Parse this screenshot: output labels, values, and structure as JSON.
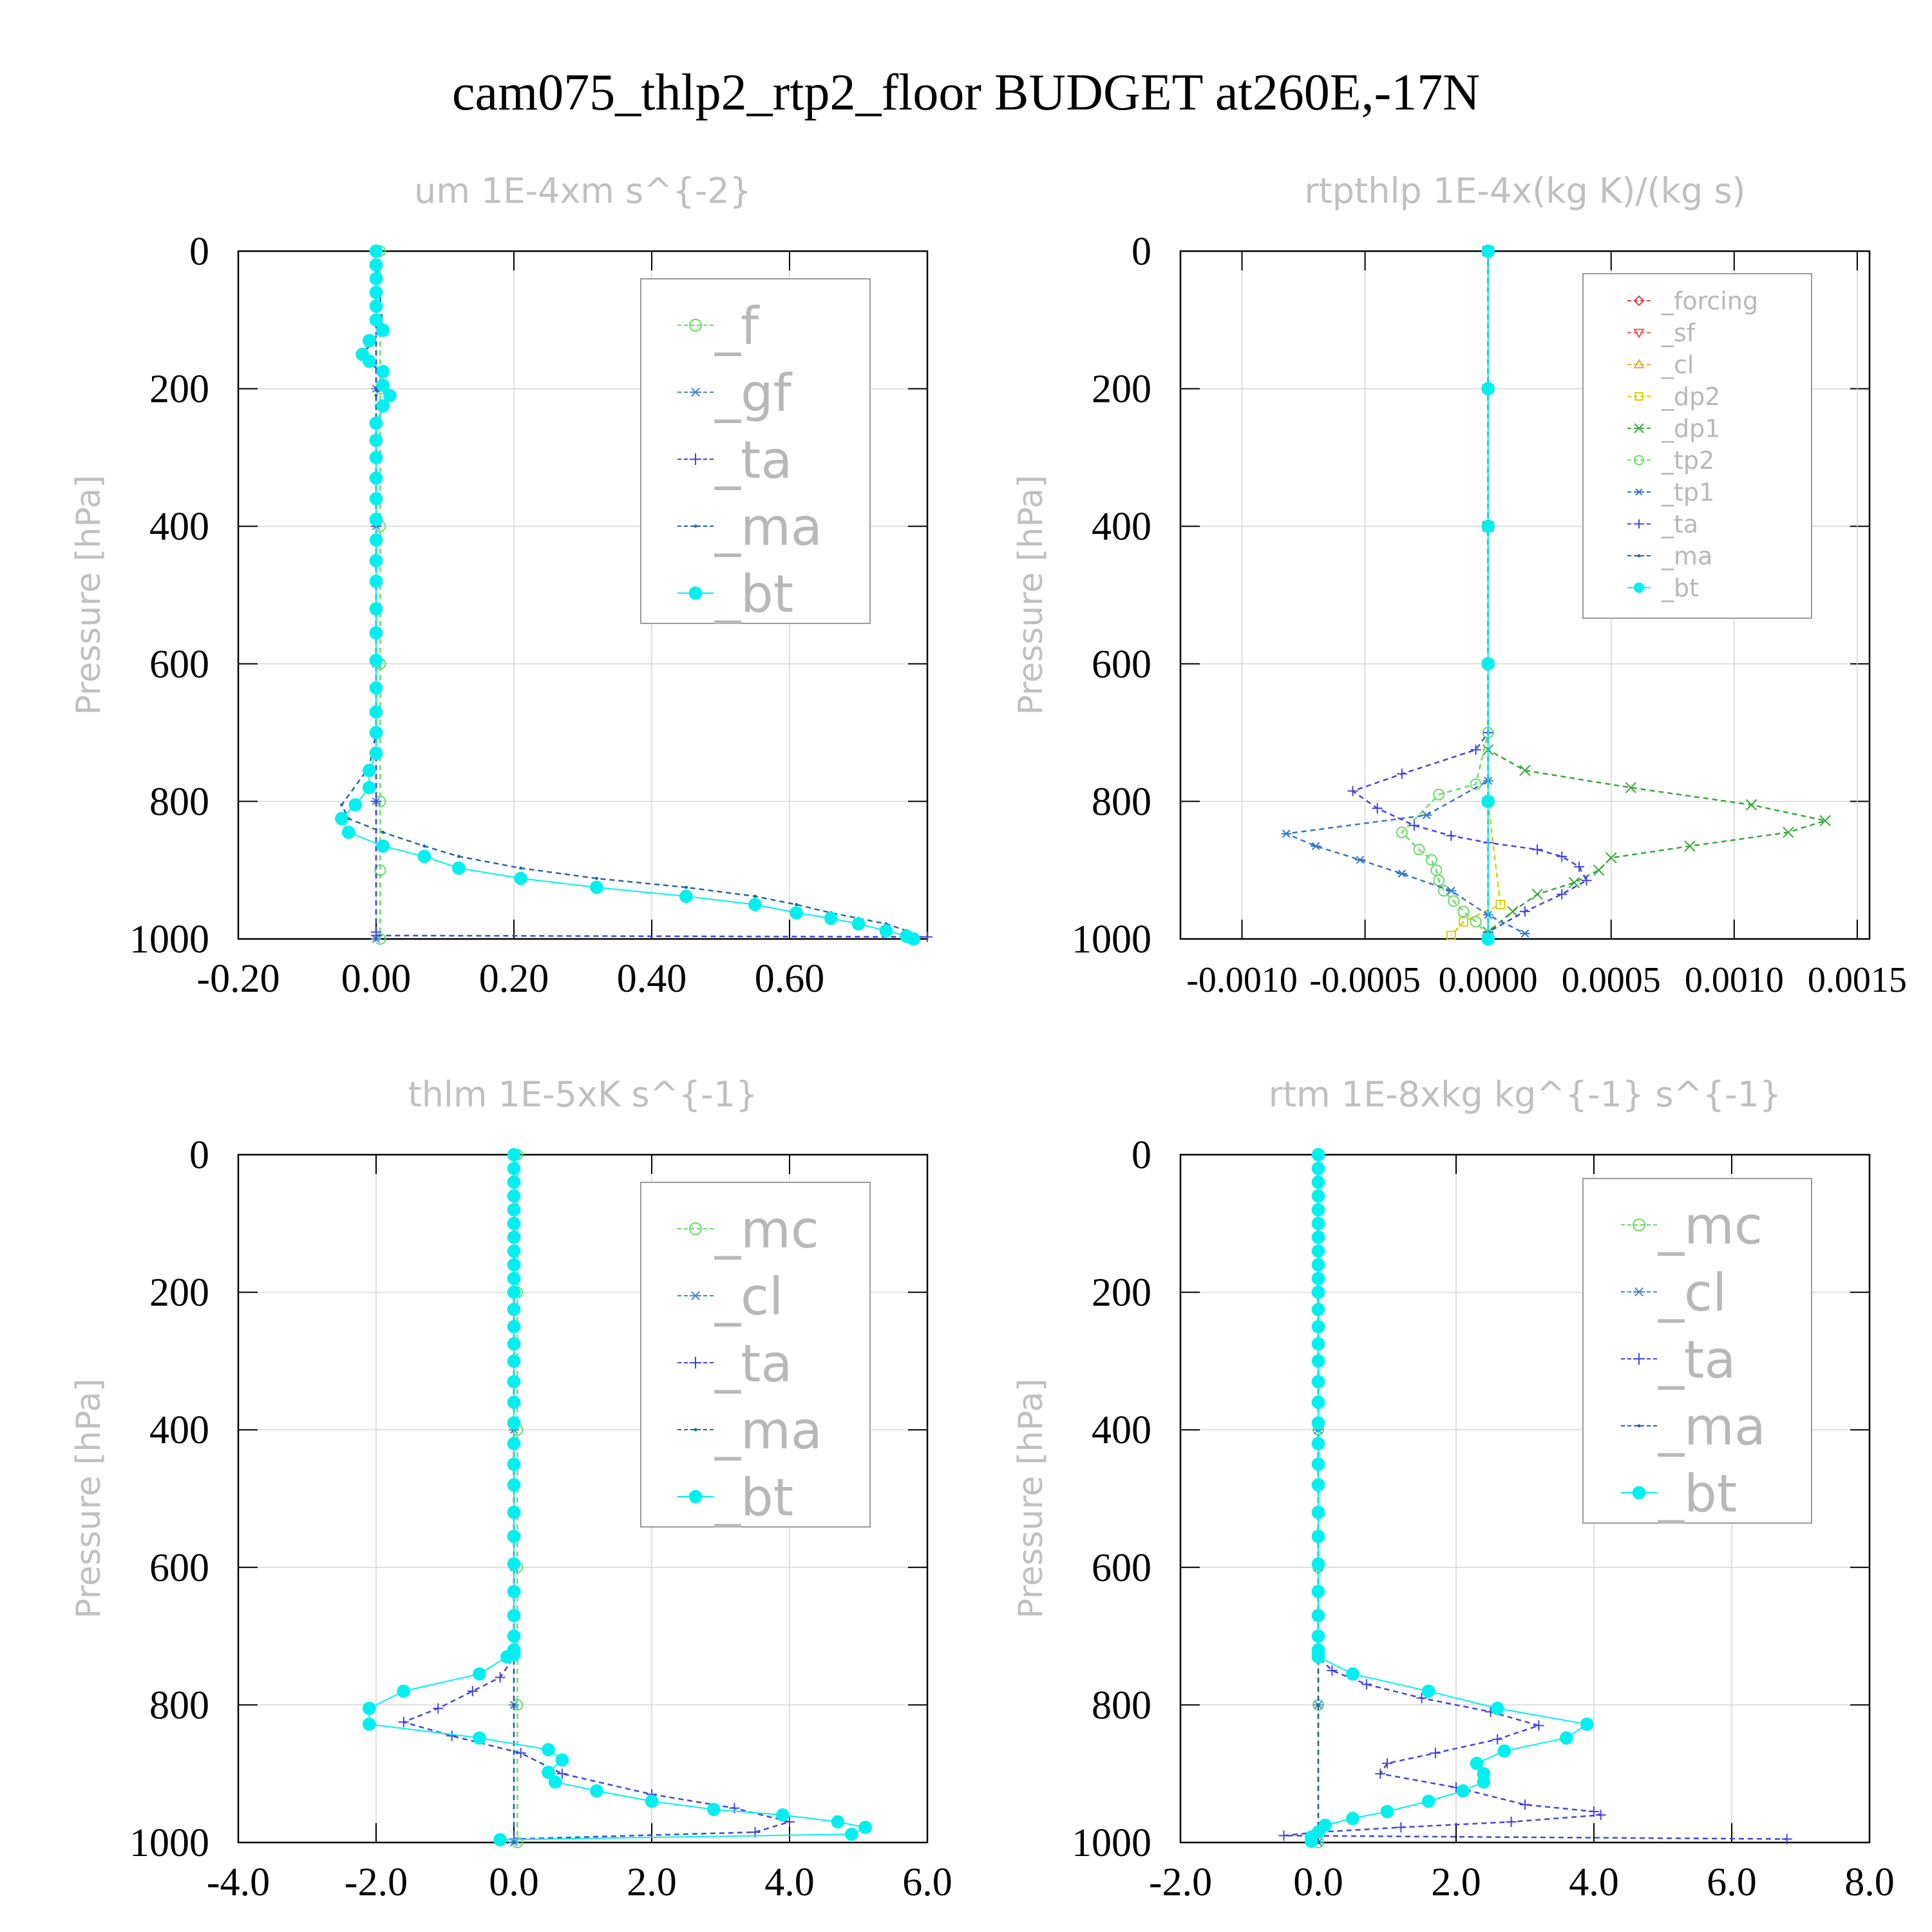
{
  "figure": {
    "title": "cam075_thlp2_rtp2_floor  BUDGET at260E,-17N"
  },
  "chart_data": [
    {
      "type": "line",
      "title": "um  1E-4xm s^{-2}",
      "ylabel": "Pressure [hPa]",
      "xlim": [
        -0.2,
        0.8
      ],
      "ylim": [
        1000,
        0
      ],
      "xticks": [
        "-0.20",
        "0.00",
        "0.20",
        "0.40",
        "0.60"
      ],
      "xtick_values": [
        -0.2,
        0.0,
        0.2,
        0.4,
        0.6
      ],
      "yticks": [
        "0",
        "200",
        "400",
        "600",
        "800",
        "1000"
      ],
      "ytick_values": [
        0,
        200,
        400,
        600,
        800,
        1000
      ],
      "legend_position": "top-right",
      "series": [
        {
          "name": "_f",
          "color": "#66dd66",
          "marker": "circle-open",
          "x": [
            0.006,
            0.006,
            0.006,
            0.006,
            0.006,
            0.006,
            0.006
          ],
          "y": [
            0,
            200,
            400,
            600,
            800,
            900,
            1000
          ]
        },
        {
          "name": "_gf",
          "color": "#4488cc",
          "marker": "asterisk",
          "x": [
            0.0,
            0.0,
            0.0,
            0.0,
            0.0,
            0.0
          ],
          "y": [
            0,
            200,
            400,
            600,
            800,
            1000
          ]
        },
        {
          "name": "_ta",
          "color": "#4444dd",
          "marker": "plus",
          "x": [
            0.0,
            0.0,
            0.0,
            0.0,
            0.0,
            0.8
          ],
          "y": [
            0,
            400,
            800,
            990,
            995,
            997
          ]
        },
        {
          "name": "_ma",
          "color": "#2266aa",
          "marker": "dot",
          "x": [
            0.0,
            0.01,
            -0.02,
            0.01,
            0.0,
            0.0,
            0.0,
            0.0,
            -0.01,
            -0.05,
            -0.04,
            0.01,
            0.07,
            0.12,
            0.21,
            0.32,
            0.45,
            0.55,
            0.61,
            0.66,
            0.7,
            0.74,
            0.77,
            0.78
          ],
          "y": [
            0,
            115,
            150,
            180,
            210,
            400,
            600,
            700,
            750,
            805,
            825,
            845,
            865,
            880,
            897,
            912,
            925,
            938,
            950,
            962,
            970,
            978,
            988,
            996
          ]
        },
        {
          "name": "_bt",
          "color": "#00f0f0",
          "marker": "filled-circle",
          "x": [
            0.0,
            0.0,
            0.0,
            0.0,
            0.0,
            0.0,
            0.01,
            -0.01,
            -0.02,
            -0.01,
            0.01,
            0.01,
            0.02,
            0.01,
            0.0,
            0.0,
            0.0,
            0.0,
            0.0,
            0.0,
            0.0,
            0.0,
            0.0,
            0.0,
            0.0,
            0.0,
            0.0,
            0.0,
            0.0,
            0.0,
            -0.01,
            -0.01,
            -0.03,
            -0.05,
            -0.04,
            0.01,
            0.07,
            0.12,
            0.21,
            0.32,
            0.45,
            0.55,
            0.61,
            0.66,
            0.7,
            0.74,
            0.77,
            0.78
          ],
          "y": [
            0,
            20,
            40,
            60,
            80,
            100,
            115,
            130,
            150,
            160,
            175,
            195,
            210,
            225,
            250,
            275,
            300,
            330,
            360,
            390,
            420,
            450,
            480,
            520,
            555,
            595,
            635,
            670,
            700,
            730,
            755,
            780,
            805,
            825,
            845,
            865,
            880,
            897,
            912,
            925,
            938,
            950,
            962,
            970,
            978,
            988,
            996,
            1000
          ]
        }
      ]
    },
    {
      "type": "line",
      "title": "rtpthlp  1E-4x(kg K)/(kg s)",
      "ylabel": "Pressure [hPa]",
      "xlim": [
        -0.00125,
        0.00155
      ],
      "ylim": [
        1000,
        0
      ],
      "xticks": [
        "-0.0010",
        "-0.0005",
        "0.0000",
        "0.0005",
        "0.0010",
        "0.0015"
      ],
      "xtick_values": [
        -0.001,
        -0.0005,
        0.0,
        0.0005,
        0.001,
        0.0015
      ],
      "yticks": [
        "0",
        "200",
        "400",
        "600",
        "800",
        "1000"
      ],
      "ytick_values": [
        0,
        200,
        400,
        600,
        800,
        1000
      ],
      "legend_position": "top-right",
      "series": [
        {
          "name": "_forcing",
          "color": "#dd4444",
          "marker": "diamond",
          "x": [
            0.0,
            0.0,
            0.0,
            0.0,
            0.0,
            0.0
          ],
          "y": [
            0,
            200,
            400,
            600,
            800,
            1000
          ]
        },
        {
          "name": "_sf",
          "color": "#ee5555",
          "marker": "triangle-down",
          "x": [
            0.0,
            0.0,
            0.0,
            0.0,
            0.0,
            0.0
          ],
          "y": [
            0,
            200,
            400,
            600,
            800,
            1000
          ]
        },
        {
          "name": "_cl",
          "color": "#eeaa44",
          "marker": "triangle-up",
          "x": [
            0.0,
            0.0,
            0.0,
            0.0,
            0.0,
            0.0
          ],
          "y": [
            0,
            200,
            400,
            600,
            800,
            1000
          ]
        },
        {
          "name": "_dp2",
          "color": "#ddcc00",
          "marker": "square",
          "x": [
            0.0,
            0.0,
            0.0,
            0.0,
            0.0,
            5e-05,
            -0.0001,
            -0.00015
          ],
          "y": [
            0,
            200,
            400,
            600,
            800,
            950,
            975,
            995
          ]
        },
        {
          "name": "_dp1",
          "color": "#33aa33",
          "marker": "x",
          "x": [
            0.0,
            0.0,
            0.0,
            0.00015,
            0.00058,
            0.00107,
            0.00137,
            0.00122,
            0.00082,
            0.0005,
            0.00045,
            0.00035,
            0.0002,
            0.0001,
            0.0
          ],
          "y": [
            0,
            400,
            725,
            755,
            780,
            805,
            828,
            845,
            865,
            882,
            900,
            918,
            935,
            960,
            990
          ]
        },
        {
          "name": "_tp2",
          "color": "#66dd66",
          "marker": "circle-open",
          "x": [
            0.0,
            0.0,
            -5e-05,
            -0.0002,
            -0.00035,
            -0.00028,
            -0.00023,
            -0.00021,
            -0.0002,
            -0.00018,
            -0.00014,
            -0.0001,
            -5e-05,
            0.0
          ],
          "y": [
            0,
            700,
            775,
            790,
            845,
            870,
            885,
            900,
            915,
            930,
            945,
            960,
            975,
            995
          ]
        },
        {
          "name": "_tp1",
          "color": "#3377cc",
          "marker": "asterisk",
          "x": [
            0.0,
            0.0,
            -0.00025,
            -0.00082,
            -0.0007,
            -0.00052,
            -0.00035,
            -0.00015,
            0.0,
            0.00015
          ],
          "y": [
            0,
            770,
            820,
            847,
            865,
            885,
            905,
            930,
            965,
            992
          ]
        },
        {
          "name": "_ta",
          "color": "#4444dd",
          "marker": "plus",
          "x": [
            0.0,
            0.0,
            -5e-05,
            -0.00035,
            -0.00055,
            -0.00045,
            -0.0003,
            -0.00015,
            0.0,
            0.0002,
            0.0003,
            0.00037,
            0.0004,
            0.0003,
            0.00015,
            0.0
          ],
          "y": [
            0,
            700,
            725,
            760,
            785,
            810,
            835,
            850,
            860,
            870,
            880,
            895,
            915,
            935,
            960,
            990
          ]
        },
        {
          "name": "_ma",
          "color": "#2266aa",
          "marker": "dot",
          "x": [
            0.0,
            0.0,
            0.0,
            0.0,
            0.0,
            0.0
          ],
          "y": [
            0,
            200,
            400,
            600,
            800,
            1000
          ]
        },
        {
          "name": "_bt",
          "color": "#00f0f0",
          "marker": "filled-circle",
          "x": [
            0.0,
            0.0,
            0.0,
            0.0,
            0.0,
            0.0
          ],
          "y": [
            0,
            200,
            400,
            600,
            800,
            1000
          ]
        }
      ]
    },
    {
      "type": "line",
      "title": "thlm  1E-5xK s^{-1}",
      "ylabel": "Pressure [hPa]",
      "xlim": [
        -4.0,
        6.0
      ],
      "ylim": [
        1000,
        0
      ],
      "xticks": [
        "-4.0",
        "-2.0",
        "0.0",
        "2.0",
        "4.0",
        "6.0"
      ],
      "xtick_values": [
        -4,
        -2,
        0,
        2,
        4,
        6
      ],
      "yticks": [
        "0",
        "200",
        "400",
        "600",
        "800",
        "1000"
      ],
      "ytick_values": [
        0,
        200,
        400,
        600,
        800,
        1000
      ],
      "legend_position": "top-right",
      "series": [
        {
          "name": "_mc",
          "color": "#66dd66",
          "marker": "circle-open",
          "x": [
            0.05,
            0.05,
            0.05,
            0.05,
            0.05,
            0.05
          ],
          "y": [
            0,
            200,
            400,
            600,
            800,
            1000
          ]
        },
        {
          "name": "_cl",
          "color": "#4488cc",
          "marker": "asterisk",
          "x": [
            0.0,
            0.0,
            0.0,
            0.0,
            0.0,
            0.0
          ],
          "y": [
            0,
            200,
            400,
            600,
            800,
            1000
          ]
        },
        {
          "name": "_ta",
          "color": "#4444dd",
          "marker": "plus",
          "x": [
            0.0,
            0.0,
            0.0,
            -0.2,
            -0.6,
            -1.1,
            -1.6,
            -0.9,
            0.1,
            0.7,
            2.0,
            3.2,
            4.0,
            3.5,
            0.0
          ],
          "y": [
            0,
            700,
            730,
            760,
            780,
            805,
            825,
            845,
            870,
            900,
            930,
            950,
            970,
            985,
            995
          ]
        },
        {
          "name": "_ma",
          "color": "#2266aa",
          "marker": "dot",
          "x": [
            0.0,
            0.0,
            0.0,
            0.0,
            0.0,
            0.0
          ],
          "y": [
            0,
            200,
            400,
            600,
            800,
            1000
          ]
        },
        {
          "name": "_bt",
          "color": "#00f0f0",
          "marker": "filled-circle",
          "x": [
            0.0,
            0.0,
            0.0,
            0.0,
            0.0,
            0.0,
            0.0,
            0.0,
            0.0,
            0.0,
            0.0,
            0.0,
            0.0,
            0.0,
            0.0,
            0.0,
            0.0,
            0.0,
            0.0,
            0.0,
            0.0,
            0.0,
            0.0,
            0.0,
            0.0,
            0.0,
            0.0,
            0.0,
            0.0,
            0.0,
            -0.1,
            -0.5,
            -1.6,
            -2.1,
            -2.1,
            -0.5,
            0.5,
            0.7,
            0.5,
            0.6,
            1.2,
            2.0,
            2.9,
            3.9,
            4.7,
            5.1,
            4.9,
            -0.2
          ],
          "y": [
            0,
            20,
            40,
            60,
            80,
            100,
            120,
            140,
            160,
            180,
            200,
            225,
            250,
            275,
            300,
            330,
            360,
            390,
            420,
            450,
            480,
            520,
            555,
            595,
            635,
            670,
            700,
            720,
            725,
            727,
            730,
            755,
            780,
            805,
            828,
            848,
            865,
            880,
            898,
            912,
            925,
            940,
            952,
            960,
            970,
            978,
            988,
            996
          ]
        }
      ]
    },
    {
      "type": "line",
      "title": "rtm  1E-8xkg kg^{-1} s^{-1}",
      "ylabel": "Pressure [hPa]",
      "xlim": [
        -2.0,
        8.0
      ],
      "ylim": [
        1000,
        0
      ],
      "xticks": [
        "-2.0",
        "0.0",
        "2.0",
        "4.0",
        "6.0",
        "8.0"
      ],
      "xtick_values": [
        -2,
        0,
        2,
        4,
        6,
        8
      ],
      "yticks": [
        "0",
        "200",
        "400",
        "600",
        "800",
        "1000"
      ],
      "ytick_values": [
        0,
        200,
        400,
        600,
        800,
        1000
      ],
      "legend_position": "top-right",
      "series": [
        {
          "name": "_mc",
          "color": "#66dd66",
          "marker": "circle-open",
          "x": [
            0.0,
            0.0,
            0.0,
            0.0,
            0.0,
            0.0
          ],
          "y": [
            0,
            200,
            400,
            600,
            800,
            1000
          ]
        },
        {
          "name": "_cl",
          "color": "#4488cc",
          "marker": "asterisk",
          "x": [
            0.0,
            0.0,
            0.0,
            0.0,
            0.0,
            0.0
          ],
          "y": [
            0,
            200,
            400,
            600,
            800,
            1000
          ]
        },
        {
          "name": "_ta",
          "color": "#4444dd",
          "marker": "plus",
          "x": [
            0.0,
            0.0,
            0.0,
            0.2,
            0.7,
            1.5,
            2.5,
            3.2,
            2.6,
            1.7,
            1.0,
            0.9,
            2.0,
            3.0,
            4.0,
            4.1,
            2.8,
            1.2,
            0.0,
            -0.5,
            6.8
          ],
          "y": [
            0,
            700,
            730,
            750,
            770,
            790,
            810,
            830,
            850,
            870,
            885,
            900,
            920,
            945,
            955,
            960,
            970,
            978,
            985,
            990,
            995
          ]
        },
        {
          "name": "_ma",
          "color": "#2266aa",
          "marker": "dot",
          "x": [
            0.0,
            0.0,
            0.0,
            0.0,
            0.0,
            0.0
          ],
          "y": [
            0,
            200,
            400,
            600,
            800,
            1000
          ]
        },
        {
          "name": "_bt",
          "color": "#00f0f0",
          "marker": "filled-circle",
          "x": [
            0.0,
            0.0,
            0.0,
            0.0,
            0.0,
            0.0,
            0.0,
            0.0,
            0.0,
            0.0,
            0.0,
            0.0,
            0.0,
            0.0,
            0.0,
            0.0,
            0.0,
            0.0,
            0.0,
            0.0,
            0.0,
            0.0,
            0.0,
            0.0,
            0.0,
            0.0,
            0.0,
            0.0,
            0.0,
            0.0,
            0.5,
            1.6,
            2.6,
            3.9,
            3.6,
            2.7,
            2.3,
            2.4,
            2.4,
            2.1,
            1.6,
            1.0,
            0.5,
            0.1,
            0.0,
            -0.1,
            -0.1
          ],
          "y": [
            0,
            20,
            40,
            60,
            80,
            100,
            120,
            140,
            160,
            180,
            200,
            225,
            250,
            275,
            300,
            330,
            360,
            390,
            420,
            450,
            480,
            520,
            555,
            595,
            635,
            670,
            700,
            720,
            725,
            730,
            755,
            780,
            805,
            828,
            848,
            867,
            885,
            900,
            912,
            925,
            940,
            955,
            965,
            975,
            985,
            992,
            998
          ]
        }
      ]
    }
  ]
}
